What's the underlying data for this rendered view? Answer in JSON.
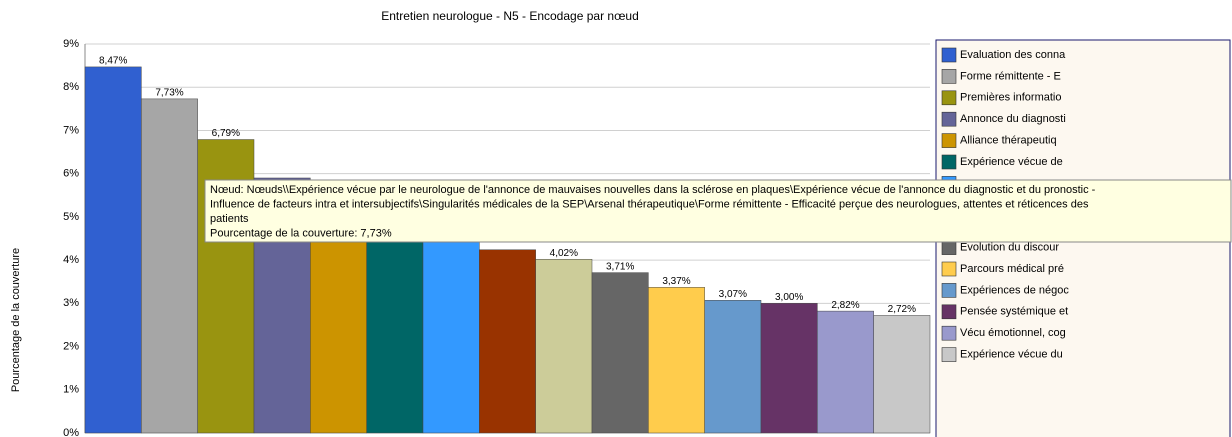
{
  "chart_data": {
    "type": "bar",
    "title": "Entretien neurologue - N5 - Encodage par nœud",
    "y_label": "Pourcentage de la couverture",
    "categories": [
      "Evaluation des conna",
      "Forme rémittente - E",
      "Premières informatio",
      "Annonce du diagnosti",
      "Alliance thérapeutiq",
      "Expérience vécue de",
      null,
      null,
      null,
      "Évolution du discour",
      "Parcours médical pré",
      "Expériences de négoc",
      "Pensée systémique et",
      "Vécu émotionnel, cog",
      "Expérience vécue du"
    ],
    "values": [
      8.47,
      7.73,
      6.79,
      5.9,
      5.5,
      5.1,
      4.7,
      4.24,
      4.02,
      3.71,
      3.37,
      3.07,
      3.0,
      2.82,
      2.72
    ],
    "value_labels": [
      "8,47%",
      "7,73%",
      "6,79%",
      null,
      null,
      null,
      null,
      null,
      "4,02%",
      "3,71%",
      "3,37%",
      "3,07%",
      "3,00%",
      "2,82%",
      "2,72%"
    ],
    "colors": [
      "#3060d0",
      "#a6a6a6",
      "#999410",
      "#646498",
      "#cc9400",
      "#006666",
      "#3399ff",
      "#993300",
      "#cccc99",
      "#666666",
      "#ffcc4c",
      "#6699cc",
      "#663366",
      "#9999cc",
      "#c8c8c8"
    ],
    "ylim": [
      0,
      9
    ],
    "yticks": [
      {
        "value": 0,
        "label": "0%"
      },
      {
        "value": 1,
        "label": "1%"
      },
      {
        "value": 2,
        "label": "2%"
      },
      {
        "value": 3,
        "label": "3%"
      },
      {
        "value": 4,
        "label": "4%"
      },
      {
        "value": 5,
        "label": "5%"
      },
      {
        "value": 6,
        "label": "6%"
      },
      {
        "value": 7,
        "label": "7%"
      },
      {
        "value": 8,
        "label": "8%"
      },
      {
        "value": 9,
        "label": "9%"
      }
    ],
    "grid": true,
    "legend": "right",
    "tooltip": [
      "Nœud: Nœuds\\\\Expérience vécue par le neurologue de l'annonce de mauvaises nouvelles dans la sclérose en plaques\\Expérience vécue de l'annonce du diagnostic et du pronostic -",
      "Influence de facteurs intra et intersubjectifs\\Singularités médicales de la SEP\\Arsenal thérapeutique\\Forme rémittente - Efficacité perçue des neurologues, attentes et réticences des",
      "patients",
      "Pourcentage de la couverture: 7,73%"
    ]
  }
}
